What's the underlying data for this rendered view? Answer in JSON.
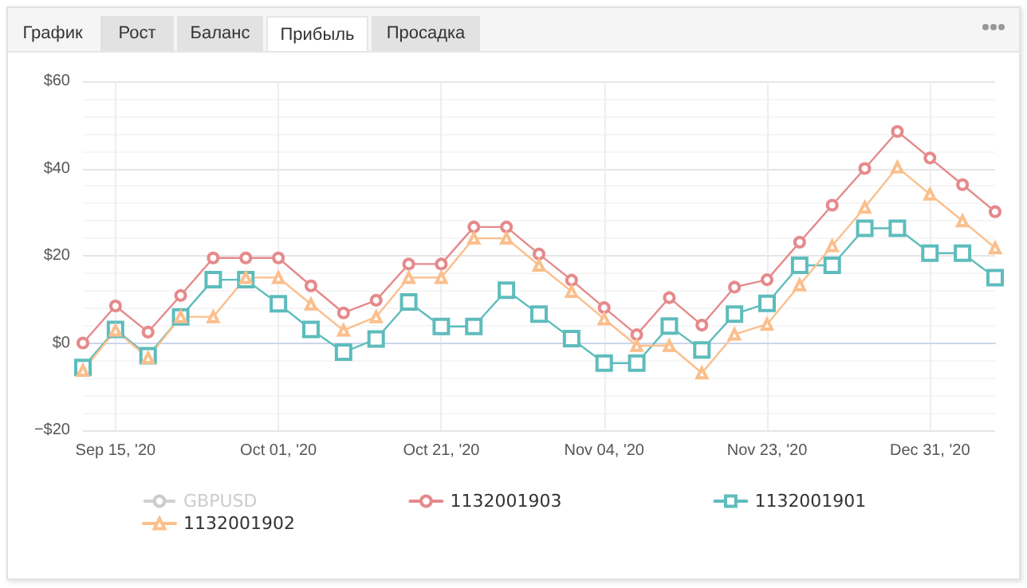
{
  "chart_data": {
    "type": "line",
    "annotations": [
      "График",
      "Рост",
      "Баланс",
      "Прибыль",
      "Просадка"
    ],
    "categories": [
      null,
      "Sep 15, '20",
      null,
      null,
      null,
      null,
      "Oct 01, '20",
      null,
      null,
      null,
      null,
      "Oct 21, '20",
      null,
      null,
      null,
      null,
      "Nov 04, '20",
      null,
      null,
      null,
      null,
      "Nov 23, '20",
      null,
      null,
      null,
      null,
      "Dec 31, '20",
      null,
      null
    ],
    "series": [
      {
        "name": "GBPUSD",
        "color": "#cccccc",
        "marker": "circle",
        "values": [
          null,
          null,
          null,
          null,
          null,
          null,
          null,
          null,
          null,
          null,
          null,
          null,
          null,
          null,
          null,
          null,
          null,
          null,
          null,
          null,
          null,
          null,
          null,
          null,
          null,
          null,
          null,
          null,
          null
        ]
      },
      {
        "name": "1132001903",
        "color": "#e58a8c",
        "marker": "circle",
        "values": [
          0,
          8.5,
          2.5,
          10.9,
          19.5,
          19.5,
          19.5,
          13.1,
          6.9,
          9.8,
          18.1,
          18.1,
          26.6,
          26.6,
          20.4,
          14.4,
          8.1,
          1.9,
          10.4,
          4.1,
          12.8,
          14.5,
          23.1,
          31.6,
          40,
          48.5,
          42.4,
          36.3,
          30.1
        ]
      },
      {
        "name": "1132001901",
        "color": "#5ebcbc",
        "marker": "square",
        "values": [
          -5.6,
          3.1,
          -2.9,
          6,
          14.5,
          14.5,
          9,
          3.1,
          -2.1,
          0.9,
          9.4,
          3.8,
          3.8,
          12.1,
          6.6,
          1,
          -4.6,
          -4.6,
          3.9,
          -1.6,
          6.6,
          9.1,
          17.8,
          17.8,
          26.3,
          26.3,
          20.6,
          20.6,
          15
        ]
      },
      {
        "name": "1132001902",
        "color": "#fbbf8c",
        "marker": "triangle",
        "values": [
          -6.3,
          2.9,
          -3.4,
          6,
          6,
          15,
          15,
          8.9,
          2.9,
          6,
          15,
          15,
          24,
          24,
          17.8,
          11.8,
          5.5,
          -0.6,
          -0.6,
          -6.9,
          2,
          4.3,
          13.3,
          22.3,
          31.1,
          40.3,
          34.1,
          28,
          21.8
        ]
      }
    ],
    "ylim": [
      -20,
      60
    ],
    "yticks": [
      {
        "value": -20,
        "label": "−$20"
      },
      {
        "value": 0,
        "label": "$0"
      },
      {
        "value": 20,
        "label": "$20"
      },
      {
        "value": 40,
        "label": "$40"
      },
      {
        "value": 60,
        "label": "$60"
      }
    ],
    "grid": true,
    "legend": "bottom"
  }
}
